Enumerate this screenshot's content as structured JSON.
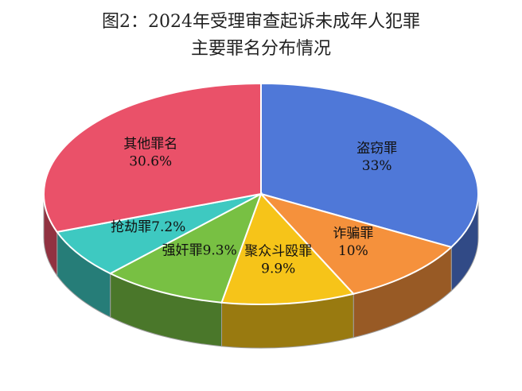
{
  "chart_data": {
    "type": "pie3d",
    "title": [
      "图2：2024年受理审查起诉未成年人犯罪",
      "主要罪名分布情况"
    ],
    "categories": [
      "盗窃罪",
      "诈骗罪",
      "聚众斗殴罪",
      "强奸罪",
      "抢劫罪",
      "其他罪名"
    ],
    "values": [
      33,
      10,
      9.9,
      9.3,
      7.2,
      30.6
    ],
    "value_labels": [
      "33%",
      "10%",
      "9.9%",
      "9.3%",
      "7.2%",
      "30.6%"
    ],
    "colors": [
      "#4f78d8",
      "#f5913c",
      "#f6c419",
      "#78c043",
      "#3ec9c1",
      "#ea5169"
    ]
  }
}
